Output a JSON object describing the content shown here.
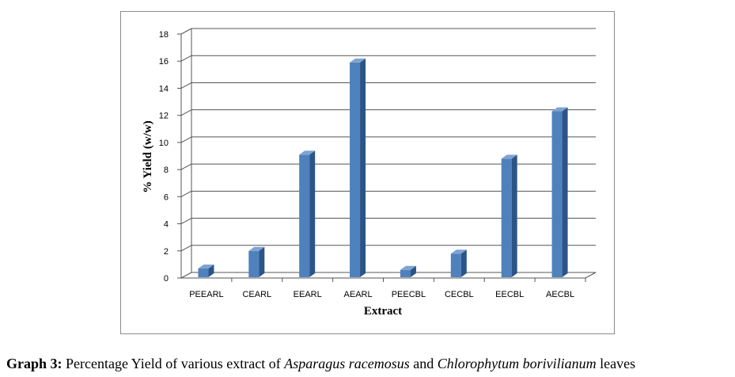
{
  "chart_data": {
    "type": "bar",
    "categories": [
      "PEEARL",
      "CEARL",
      "EEARL",
      "AEARL",
      "PEECBL",
      "CECBL",
      "EECBL",
      "AECBL"
    ],
    "values": [
      0.7,
      2.0,
      9.1,
      15.9,
      0.6,
      1.8,
      8.8,
      12.3
    ],
    "xlabel": "Extract",
    "ylabel": "% Yield (w/w)",
    "ylim": [
      0,
      18
    ],
    "yticks": [
      0,
      2,
      4,
      6,
      8,
      10,
      12,
      14,
      16,
      18
    ],
    "grid": true,
    "legend": "none",
    "style": "3d",
    "bar_color": "#4f81bd",
    "bar_side_color": "#2b5487",
    "bar_top_color": "#7fa3d1"
  },
  "caption": {
    "label": "Graph 3:",
    "text1": " Percentage Yield of various extract of ",
    "species1": "Asparagus racemosus",
    "text2": " and ",
    "species2": "Chlorophytum borivilianum",
    "text3": " leaves"
  }
}
